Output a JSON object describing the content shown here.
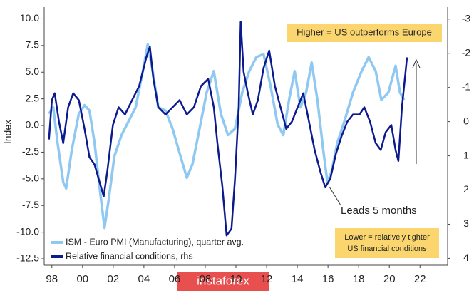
{
  "chart_data": {
    "type": "line",
    "y_label": "Index",
    "xlim": [
      1997.5,
      2023.8
    ],
    "ylim": [
      -13.1,
      11.1
    ],
    "y2lim": [
      4.2,
      -3.35
    ],
    "xticks": [
      {
        "value": 1998,
        "label": "98"
      },
      {
        "value": 2000,
        "label": "00"
      },
      {
        "value": 2002,
        "label": "02"
      },
      {
        "value": 2004,
        "label": "04"
      },
      {
        "value": 2006,
        "label": "06"
      },
      {
        "value": 2008,
        "label": "08"
      },
      {
        "value": 2010,
        "label": "10"
      },
      {
        "value": 2012,
        "label": "12"
      },
      {
        "value": 2014,
        "label": "14"
      },
      {
        "value": 2016,
        "label": "16"
      },
      {
        "value": 2018,
        "label": "18"
      },
      {
        "value": 2020,
        "label": "20"
      },
      {
        "value": 2022,
        "label": "22"
      }
    ],
    "yticks": [
      {
        "value": 10,
        "label": "10.0"
      },
      7.5,
      {
        "value": 5,
        "label": "5.0"
      },
      2.5,
      {
        "value": 0,
        "label": "0.0"
      },
      -2.5,
      {
        "value": -5,
        "label": "-5.0"
      },
      -7.5,
      {
        "value": -10,
        "label": "-10.0"
      },
      -12.5
    ],
    "y2ticks": [
      -3,
      -2,
      -1,
      0,
      1,
      2,
      3,
      4
    ],
    "series": [
      {
        "name": "ISM - Euro PMI (Manufacturing), quarter avg.",
        "color": "#8fc8f0",
        "x": [
          1997.81,
          1998.09,
          1998.37,
          1998.74,
          1998.93,
          1999.3,
          1999.76,
          2000.13,
          2000.45,
          2000.78,
          2001.15,
          2001.43,
          2001.71,
          2002.07,
          2002.54,
          2003.0,
          2003.46,
          2003.93,
          2004.25,
          2004.57,
          2004.94,
          2005.41,
          2005.87,
          2006.33,
          2006.8,
          2007.17,
          2007.63,
          2008.09,
          2008.56,
          2009.02,
          2009.48,
          2009.94,
          2010.41,
          2010.87,
          2011.33,
          2011.8,
          2012.26,
          2012.72,
          2013.09,
          2013.46,
          2013.83,
          2014.2,
          2014.57,
          2014.94,
          2015.31,
          2015.69,
          2015.96,
          2016.24,
          2016.61,
          2017.07,
          2017.63,
          2018.19,
          2018.65,
          2019.11,
          2019.48,
          2019.94,
          2020.41,
          2020.69,
          2020.96
        ],
        "values": [
          1.1,
          1.7,
          -1.6,
          -5.3,
          -5.9,
          -2.3,
          1.1,
          1.9,
          1.4,
          -1.6,
          -6.3,
          -9.6,
          -6.9,
          -2.9,
          -0.9,
          0.4,
          1.7,
          5.1,
          7.6,
          5.1,
          1.7,
          1.4,
          -0.3,
          -2.6,
          -4.9,
          -3.6,
          -0.3,
          3.1,
          5.1,
          1.1,
          -0.9,
          -0.3,
          3.1,
          5.1,
          6.4,
          6.7,
          3.7,
          0.1,
          -0.9,
          2.4,
          5.1,
          1.7,
          3.1,
          5.9,
          2.4,
          -2.3,
          -5.3,
          -4.3,
          -1.6,
          0.4,
          3.1,
          5.1,
          6.4,
          5.1,
          2.4,
          3.1,
          5.6,
          3.1,
          2.4
        ]
      },
      {
        "name": "Relative financial conditions, rhs",
        "color": "#0b1a8f",
        "axis": "y2",
        "x": [
          1997.81,
          1998.0,
          1998.19,
          1998.46,
          1998.74,
          1999.06,
          1999.39,
          1999.76,
          2000.13,
          2000.45,
          2000.78,
          2001.38,
          2001.61,
          2001.98,
          2002.35,
          2002.77,
          2003.23,
          2003.69,
          2004.16,
          2004.39,
          2004.62,
          2004.94,
          2005.41,
          2005.87,
          2006.33,
          2006.8,
          2007.26,
          2007.72,
          2008.19,
          2008.56,
          2008.79,
          2009.11,
          2009.39,
          2009.71,
          2009.94,
          2010.18,
          2010.31,
          2010.5,
          2010.78,
          2011.1,
          2011.43,
          2011.8,
          2012.17,
          2012.54,
          2012.91,
          2013.28,
          2013.65,
          2014.02,
          2014.39,
          2014.76,
          2015.13,
          2015.5,
          2015.82,
          2016.15,
          2016.52,
          2016.89,
          2017.26,
          2017.63,
          2018.05,
          2018.37,
          2018.74,
          2019.11,
          2019.44,
          2019.76,
          2020.13,
          2020.41,
          2020.59,
          2020.82,
          2021.06,
          2021.15
        ],
        "values": [
          0.52,
          -0.63,
          -0.83,
          0,
          0.63,
          -0.42,
          -0.83,
          -0.63,
          0.21,
          1.04,
          1.25,
          2.19,
          1.46,
          0.1,
          -0.42,
          -0.21,
          -0.63,
          -1.04,
          -1.88,
          -2.19,
          -1.25,
          -0.42,
          -0.21,
          -0.42,
          -0.63,
          -0.21,
          -0.42,
          -1.04,
          -1.25,
          -0.42,
          0.63,
          1.88,
          3.33,
          3.13,
          1.67,
          -0.42,
          -2.92,
          -1.46,
          -0.83,
          -0.21,
          -0.63,
          -1.56,
          -2.08,
          -1.04,
          -0.42,
          0.21,
          0,
          -0.42,
          -0.83,
          0,
          0.83,
          1.46,
          1.92,
          1.67,
          0.94,
          0.42,
          0,
          -0.21,
          -0.21,
          -0.42,
          0,
          0.63,
          0.83,
          0.31,
          0.1,
          0.83,
          1.15,
          -0.42,
          -1.46,
          -1.88
        ]
      }
    ],
    "annotations": {
      "top_box": "Higher = US outperforms Europe",
      "bottom_box": [
        "Lower = relatively tighter",
        "US financial conditions"
      ],
      "lead": "Leads 5 months"
    },
    "watermark": "instaforex"
  }
}
